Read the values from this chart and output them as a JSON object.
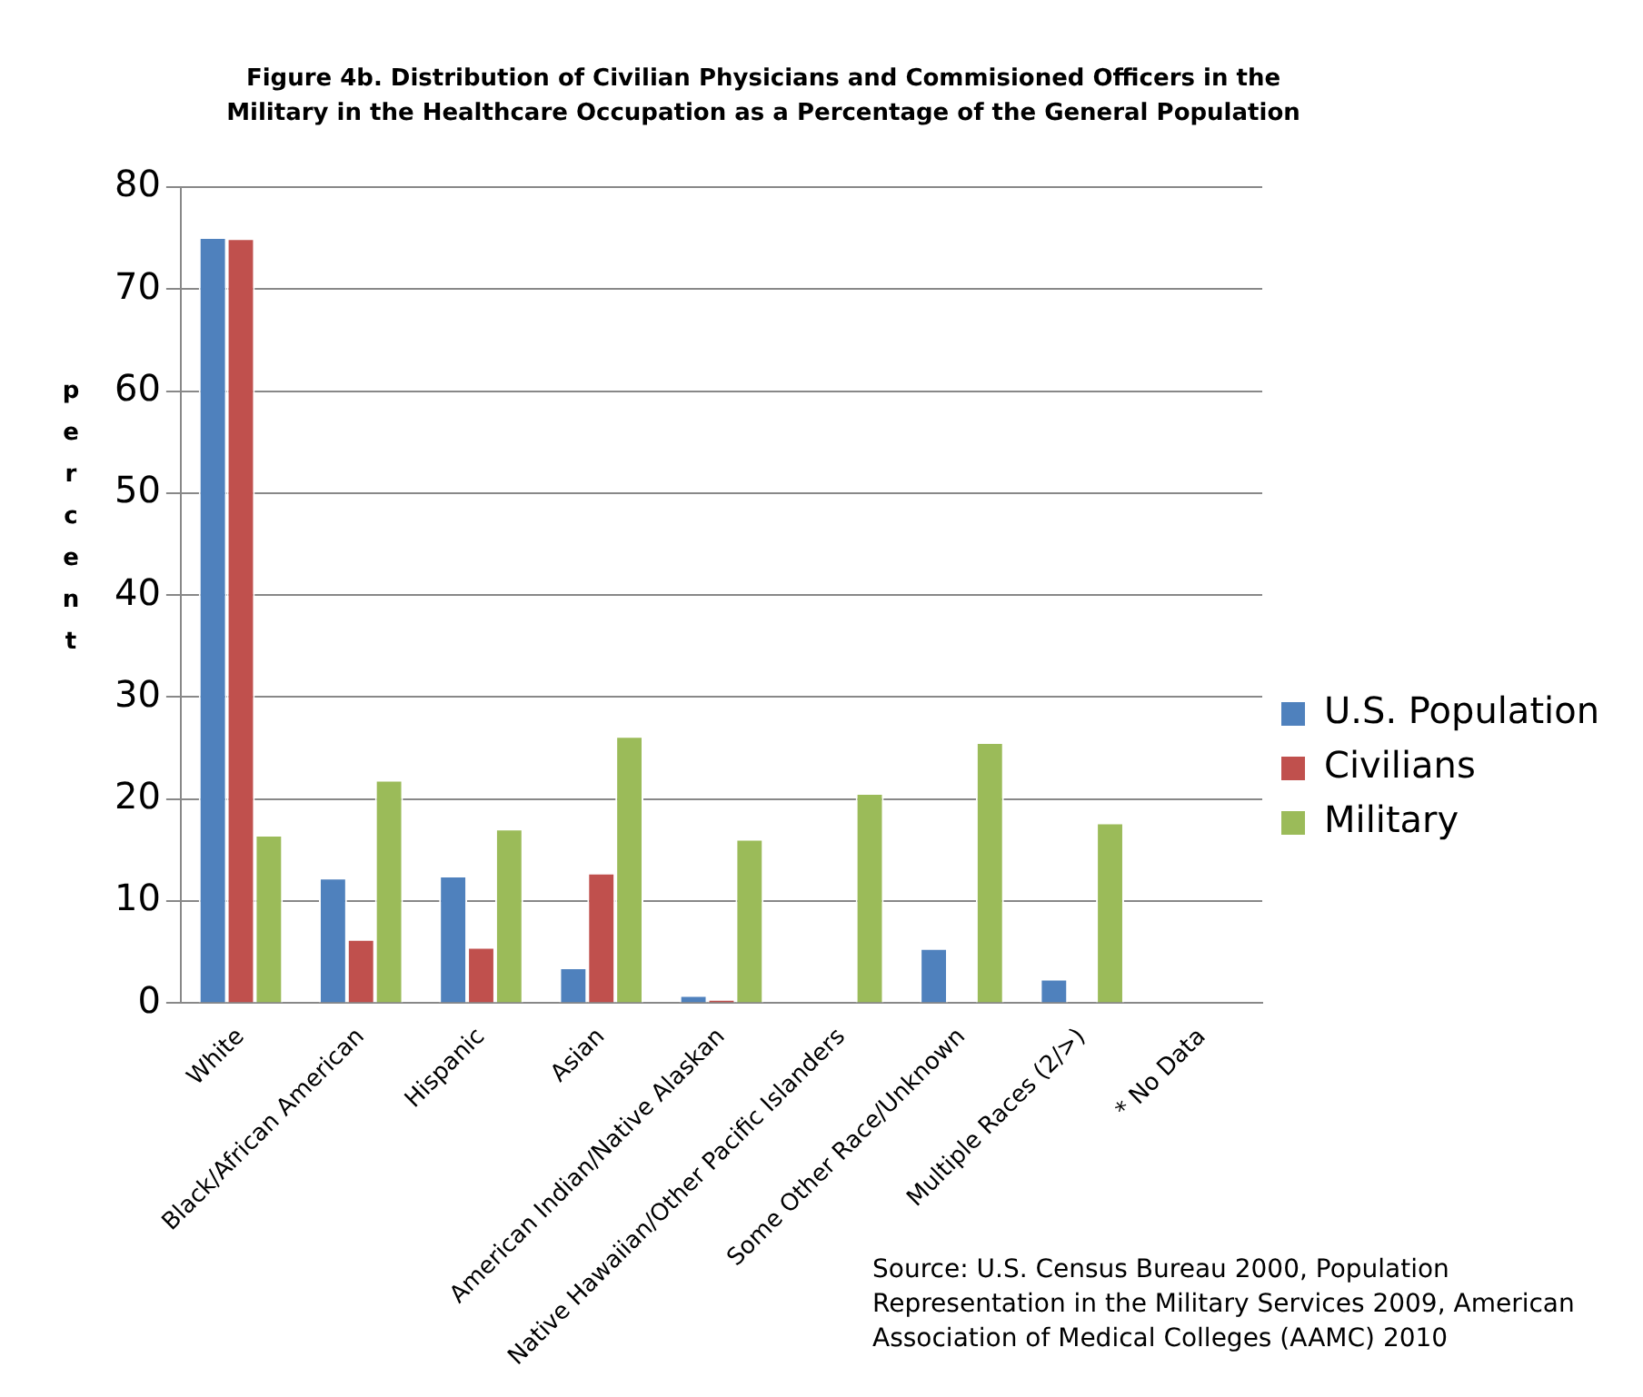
{
  "chart_data": {
    "type": "bar",
    "title": "Figure 4b.  Distribution of Civilian Physicians and Commisioned Officers in the Military in the Healthcare Occupation as a Percentage of the General Population",
    "ylabel": "percent",
    "categories": [
      "White",
      "Black/African American",
      "Hispanic",
      "Asian",
      "American Indian/Native Alaskan",
      "Native Hawaiian/Other Pacific Islanders",
      "Some Other Race/Unknown",
      "Multiple Races (2/>)",
      "* No Data"
    ],
    "series": [
      {
        "name": "U.S. Population",
        "color": "#4f81bd",
        "values": [
          75.1,
          12.3,
          12.5,
          3.5,
          0.8,
          null,
          5.4,
          2.4,
          null
        ]
      },
      {
        "name": "Civilians",
        "color": "#c0504d",
        "values": [
          75.0,
          6.3,
          5.5,
          12.8,
          0.4,
          null,
          null,
          null,
          null
        ]
      },
      {
        "name": "Military",
        "color": "#9bbb59",
        "values": [
          16.5,
          21.9,
          17.1,
          26.2,
          16.1,
          20.6,
          25.6,
          17.7,
          null
        ]
      }
    ],
    "ylim": [
      0,
      80
    ],
    "yticks": [
      0,
      10,
      20,
      30,
      40,
      50,
      60,
      70,
      80
    ],
    "grid": "y",
    "legend": "right",
    "annotations": [
      "Source:  U.S. Census Bureau 2000, Population Representation in the Military Services 2009, American Association of Medical Colleges (AAMC) 2010"
    ]
  }
}
